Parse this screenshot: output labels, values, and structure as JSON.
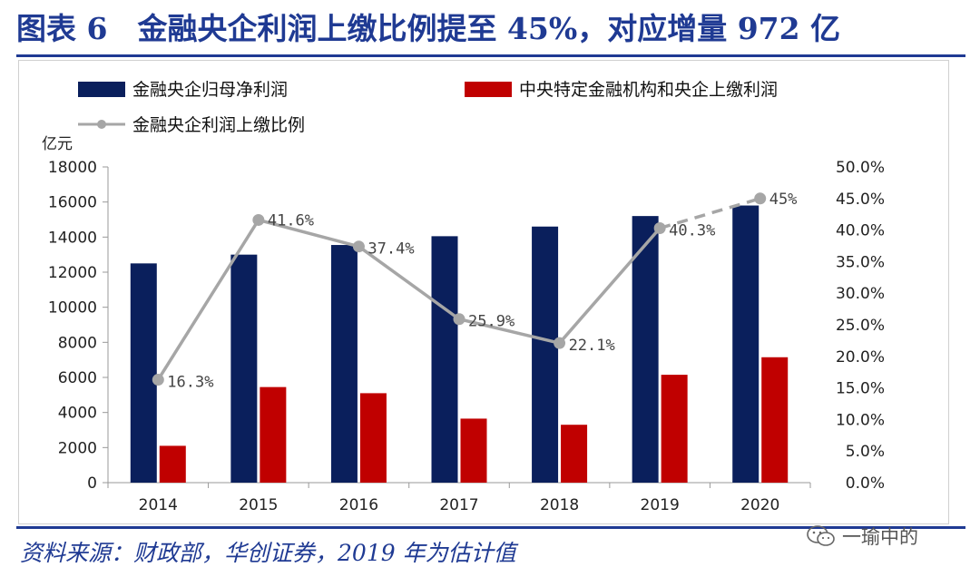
{
  "header": {
    "title": "图表 6　金融央企利润上缴比例提至 45%，对应增量 972 亿"
  },
  "footer": {
    "source": "资料来源：财政部，华创证券，2019 年为估计值"
  },
  "watermark": {
    "text": "一瑜中的",
    "icon": "wechat-icon"
  },
  "colors": {
    "navy": "#0a1f5c",
    "red": "#c00000",
    "gray": "#a6a6a6",
    "title": "#1f3a93"
  },
  "chart_data": {
    "type": "bar",
    "categories": [
      "2014",
      "2015",
      "2016",
      "2017",
      "2018",
      "2019",
      "2020"
    ],
    "series": [
      {
        "name": "金融央企归母净利润",
        "type": "bar",
        "axis": "left",
        "values": [
          12500,
          13000,
          13550,
          14050,
          14600,
          15200,
          15800
        ]
      },
      {
        "name": "中央特定金融机构和央企上缴利润",
        "type": "bar",
        "axis": "right_unused",
        "values": [
          2100,
          5450,
          5100,
          3650,
          3300,
          6150,
          7150
        ]
      },
      {
        "name": "金融央企利润上缴比例",
        "type": "line",
        "axis": "right",
        "values": [
          16.3,
          41.6,
          37.4,
          25.9,
          22.1,
          40.3,
          45.0
        ],
        "data_labels": [
          "16.3%",
          "41.6%",
          "37.4%",
          "25.9%",
          "22.1%",
          "40.3%",
          "45%"
        ],
        "dashed_last_segment": true
      }
    ],
    "y_unit": "亿元",
    "ylim": [
      0,
      18000
    ],
    "yticks": [
      "0",
      "2000",
      "4000",
      "6000",
      "8000",
      "10000",
      "12000",
      "14000",
      "16000",
      "18000"
    ],
    "y2lim": [
      0,
      50
    ],
    "y2ticks": [
      "0.0%",
      "5.0%",
      "10.0%",
      "15.0%",
      "20.0%",
      "25.0%",
      "30.0%",
      "35.0%",
      "40.0%",
      "45.0%",
      "50.0%"
    ],
    "legend": [
      "金融央企归母净利润",
      "中央特定金融机构和央企上缴利润",
      "金融央企利润上缴比例"
    ],
    "legend_position": "top"
  }
}
